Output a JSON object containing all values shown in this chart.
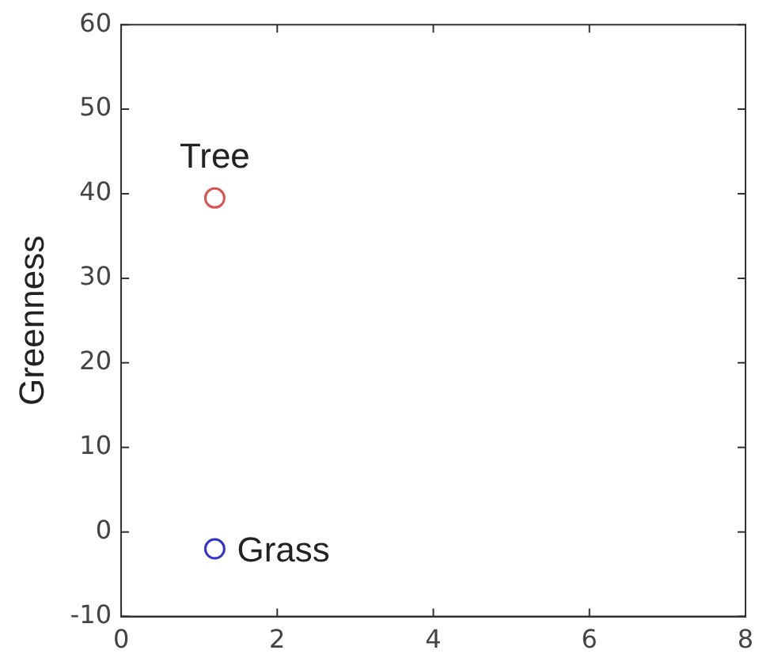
{
  "chart_data": {
    "type": "scatter",
    "ylabel": "Greenness",
    "series": [
      {
        "color": "#d9534f",
        "x": [
          1.2
        ],
        "values": [
          39.5
        ]
      },
      {
        "color": "#3333cc",
        "x": [
          1.2
        ],
        "values": [
          -2
        ]
      }
    ],
    "annotations": [
      {
        "text": "Tree",
        "x": 1.2,
        "y": 39.5
      },
      {
        "text": "Grass",
        "x": 1.2,
        "y": -2
      }
    ],
    "xlim": [
      0,
      8
    ],
    "xticks": [
      0,
      2,
      4,
      6,
      8
    ],
    "ylim": [
      -10,
      60
    ],
    "yticks": [
      -10,
      0,
      10,
      20,
      30,
      40,
      50,
      60
    ],
    "grid": false,
    "legend": false,
    "marker": "circle"
  }
}
